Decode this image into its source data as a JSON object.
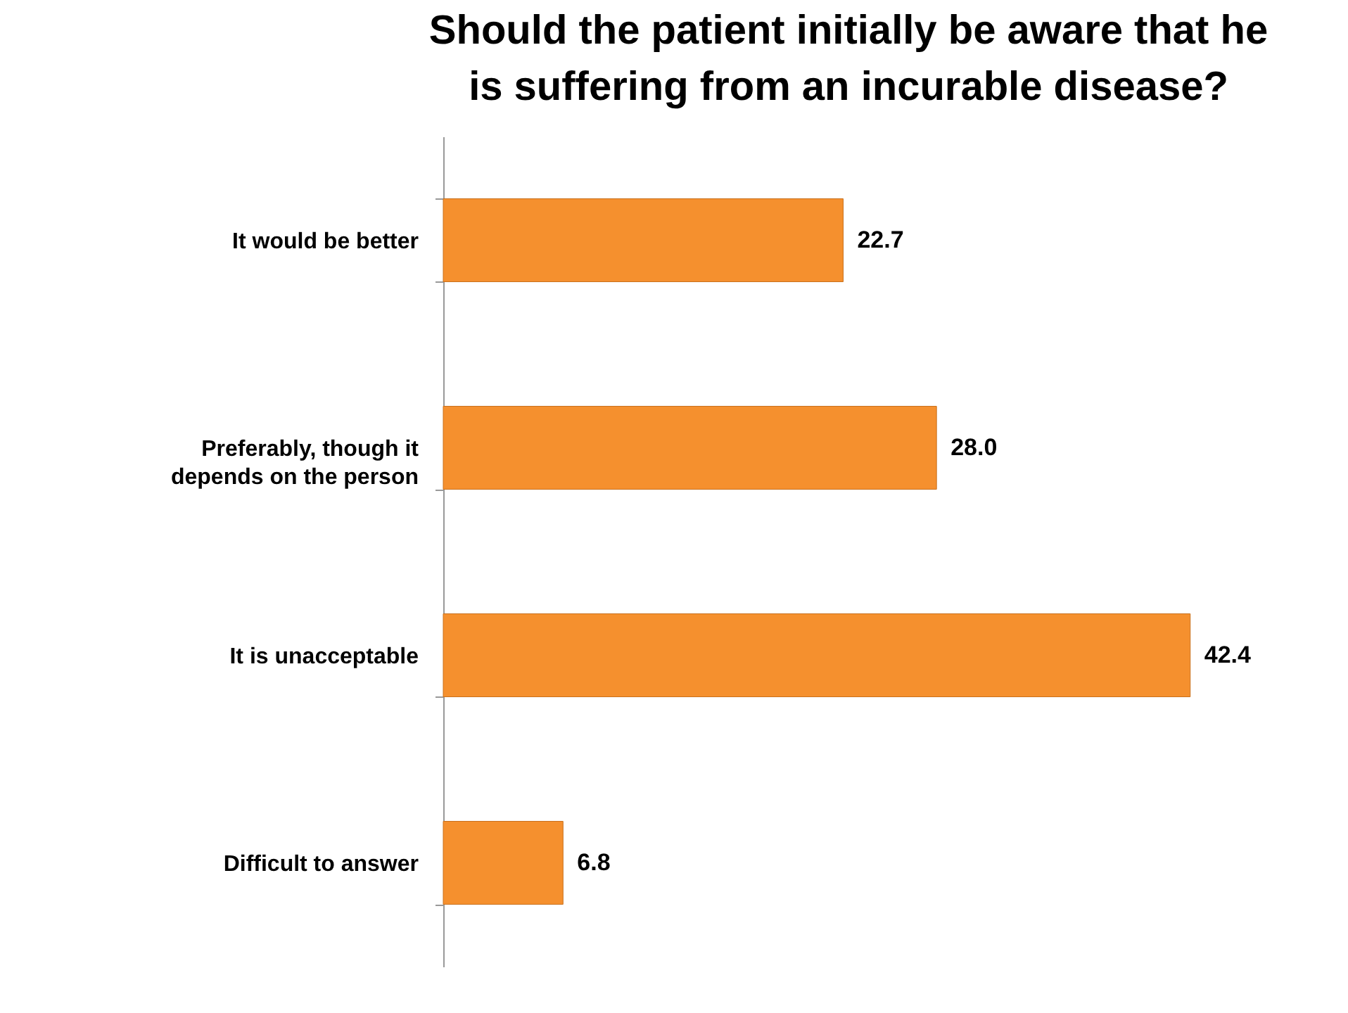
{
  "chart_data": {
    "type": "bar",
    "orientation": "horizontal",
    "title": "Should the patient initially be aware that he is suffering from an incurable disease?",
    "categories": [
      "It would be better",
      "Preferably, though it depends on the person",
      "It is unacceptable",
      "Difficult to answer"
    ],
    "values": [
      22.7,
      28.0,
      42.4,
      6.8
    ],
    "value_labels": [
      "22.7",
      "28.0",
      "42.4",
      "6.8"
    ],
    "color": "#f5902e",
    "grid": false
  }
}
